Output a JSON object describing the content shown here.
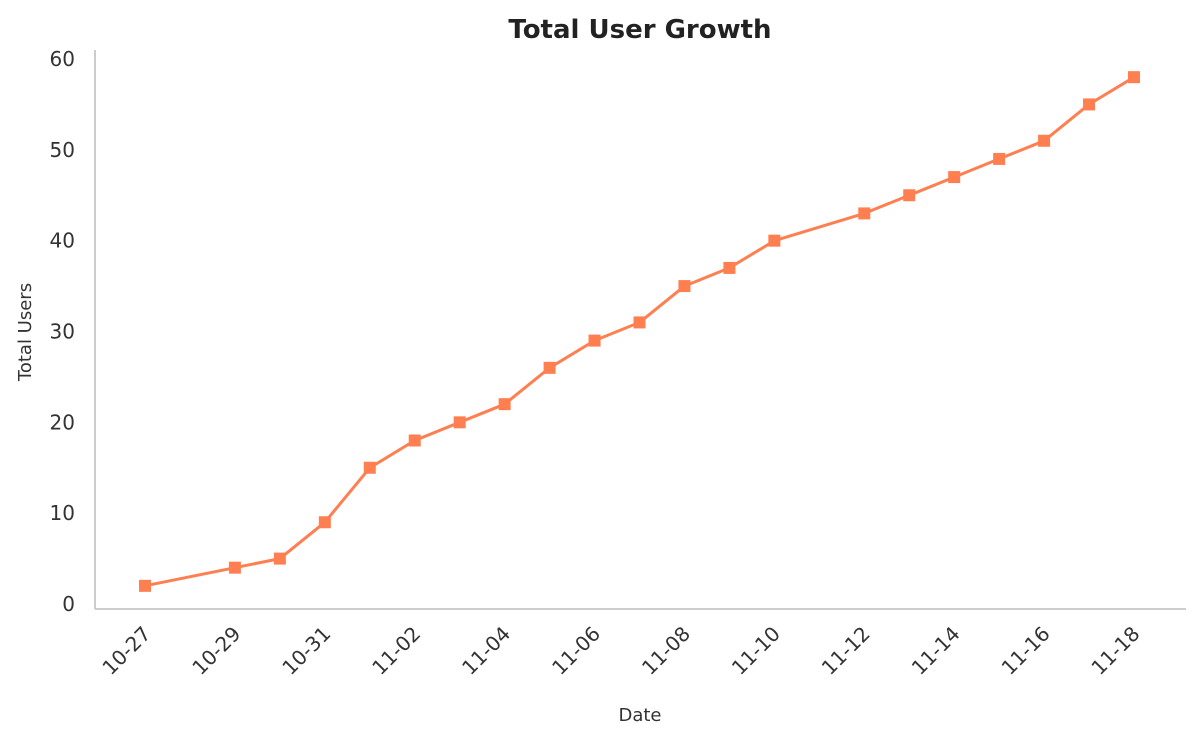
{
  "chart_data": {
    "type": "line",
    "title": "Total User Growth",
    "xlabel": "Date",
    "ylabel": "Total Users",
    "x": [
      "10-27",
      "10-29",
      "10-30",
      "10-31",
      "11-01",
      "11-02",
      "11-03",
      "11-04",
      "11-05",
      "11-06",
      "11-07",
      "11-08",
      "11-09",
      "11-10",
      "11-12",
      "11-13",
      "11-14",
      "11-15",
      "11-16",
      "11-17",
      "11-18"
    ],
    "series": [
      {
        "values": [
          2,
          4,
          5,
          9,
          15,
          18,
          20,
          22,
          26,
          29,
          31,
          35,
          37,
          40,
          43,
          45,
          47,
          49,
          51,
          55,
          58
        ],
        "color": "#ff7f50",
        "marker": "square"
      }
    ],
    "xticks": [
      "10-27",
      "10-29",
      "10-31",
      "11-02",
      "11-04",
      "11-06",
      "11-08",
      "11-10",
      "11-12",
      "11-14",
      "11-16",
      "11-18"
    ],
    "yticks": [
      0,
      10,
      20,
      30,
      40,
      50,
      60
    ],
    "ylim": [
      0,
      60
    ],
    "xlim": [
      "10-27",
      "11-18"
    ],
    "grid": false,
    "spine_color": "#cccccc"
  }
}
